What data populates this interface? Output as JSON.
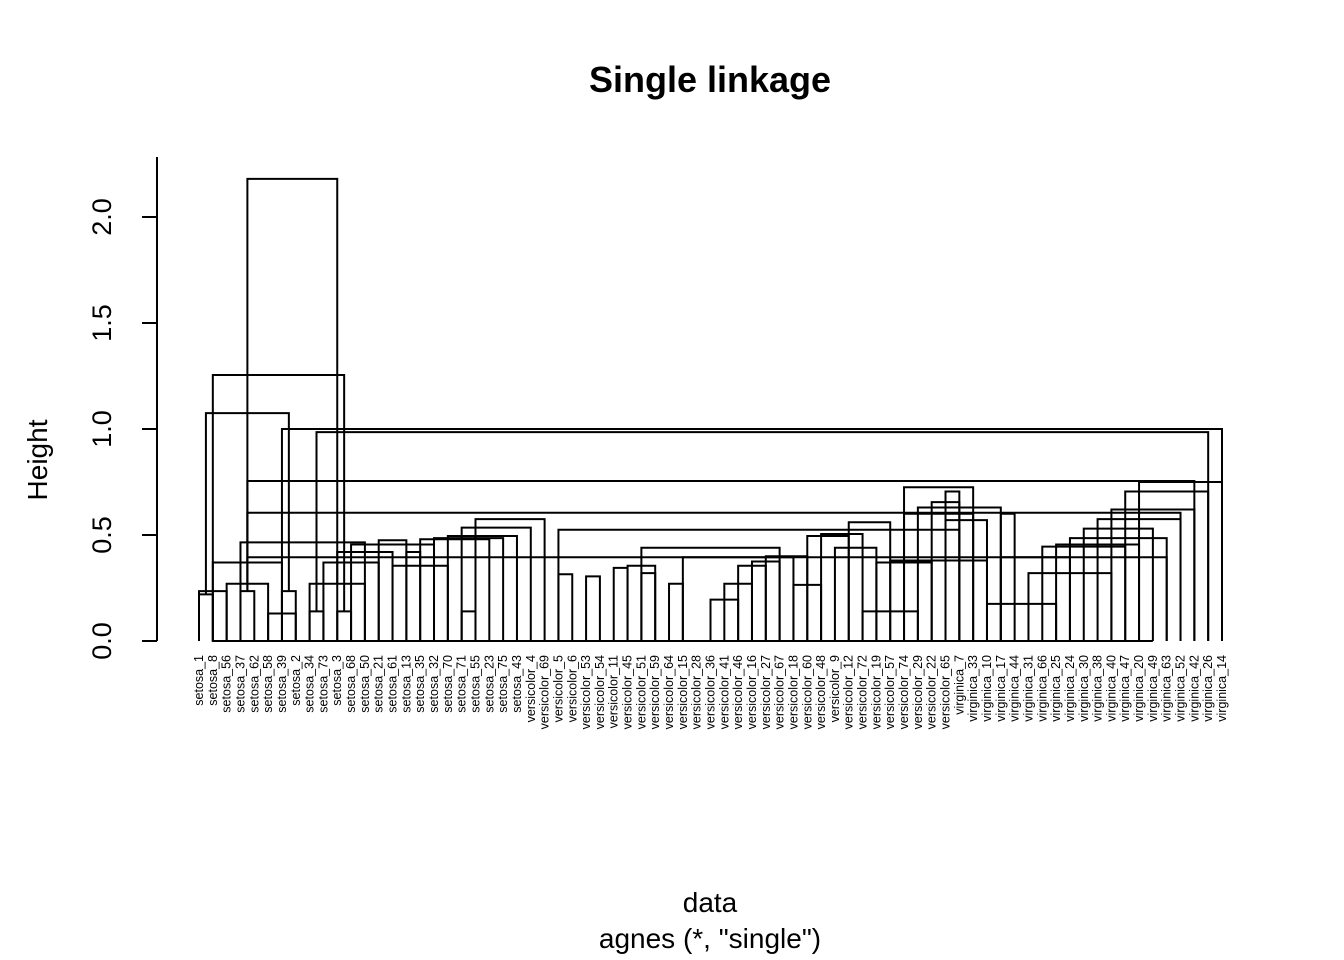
{
  "chart_data": {
    "type": "dendrogram",
    "title": "Single linkage",
    "xlabel": "data",
    "sublabel": "agnes (*, \"single\")",
    "ylabel": "Height",
    "ylim": [
      0,
      2.2
    ],
    "yticks": [
      0.0,
      0.5,
      1.0,
      1.5,
      2.0
    ],
    "ytick_labels": [
      "0.0",
      "0.5",
      "1.0",
      "1.5",
      "2.0"
    ],
    "leaves": [
      "setosa_1",
      "setosa_8",
      "setosa_56",
      "setosa_37",
      "setosa_62",
      "setosa_58",
      "setosa_39",
      "setosa_2",
      "setosa_34",
      "setosa_73",
      "setosa_3",
      "setosa_68",
      "setosa_50",
      "setosa_21",
      "setosa_61",
      "setosa_13",
      "setosa_35",
      "setosa_32",
      "setosa_70",
      "setosa_71",
      "setosa_55",
      "setosa_23",
      "setosa_75",
      "setosa_43",
      "versicolor_4",
      "versicolor_69",
      "versicolor_5",
      "versicolor_6",
      "versicolor_53",
      "versicolor_54",
      "versicolor_11",
      "versicolor_45",
      "versicolor_51",
      "versicolor_59",
      "versicolor_64",
      "versicolor_15",
      "versicolor_28",
      "versicolor_36",
      "versicolor_41",
      "versicolor_46",
      "versicolor_16",
      "versicolor_27",
      "versicolor_67",
      "versicolor_18",
      "versicolor_60",
      "versicolor_48",
      "versicolor_9",
      "versicolor_12",
      "versicolor_72",
      "versicolor_19",
      "versicolor_57",
      "versicolor_74",
      "versicolor_29",
      "versicolor_22",
      "versicolor_65",
      "virginica_7",
      "virginica_33",
      "virginica_10",
      "virginica_17",
      "virginica_44",
      "virginica_31",
      "virginica_66",
      "virginica_25",
      "virginica_24",
      "virginica_30",
      "virginica_38",
      "virginica_40",
      "virginica_47",
      "virginica_20",
      "virginica_49",
      "virginica_63",
      "virginica_52",
      "virginica_42",
      "virginica_26",
      "virginica_14"
    ],
    "merges": [
      [
        0,
        1,
        0.22
      ],
      [
        2,
        0,
        0.235
      ],
      [
        3,
        4,
        0.235
      ],
      [
        5,
        2,
        0.27
      ],
      [
        6,
        1,
        0.37
      ],
      [
        8,
        9,
        0.14
      ],
      [
        7,
        5,
        0.13
      ],
      [
        6,
        7,
        0.235
      ],
      [
        10,
        11,
        0.14
      ],
      [
        12,
        8,
        0.27
      ],
      [
        9,
        13,
        0.37
      ],
      [
        14,
        10,
        0.42
      ],
      [
        15,
        16,
        0.42
      ],
      [
        17,
        11,
        0.455
      ],
      [
        19,
        20,
        0.14
      ],
      [
        18,
        14,
        0.355
      ],
      [
        3,
        12,
        0.465
      ],
      [
        13,
        15,
        0.475
      ],
      [
        16,
        21,
        0.48
      ],
      [
        17,
        22,
        0.485
      ],
      [
        18,
        23,
        0.495
      ],
      [
        19,
        24,
        0.535
      ],
      [
        20,
        25,
        0.575
      ],
      [
        28,
        29,
        0.305
      ],
      [
        27,
        26,
        0.315
      ],
      [
        30,
        31,
        0.345
      ],
      [
        34,
        35,
        0.27
      ],
      [
        33,
        32,
        0.32
      ],
      [
        31,
        33,
        0.355
      ],
      [
        37,
        39,
        0.195
      ],
      [
        38,
        40,
        0.27
      ],
      [
        39,
        41,
        0.355
      ],
      [
        40,
        42,
        0.375
      ],
      [
        35,
        43,
        0.395
      ],
      [
        41,
        44,
        0.4
      ],
      [
        32,
        42,
        0.44
      ],
      [
        43,
        45,
        0.265
      ],
      [
        44,
        47,
        0.495
      ],
      [
        45,
        48,
        0.505
      ],
      [
        46,
        49,
        0.44
      ],
      [
        47,
        50,
        0.56
      ],
      [
        48,
        52,
        0.14
      ],
      [
        49,
        53,
        0.37
      ],
      [
        50,
        57,
        0.38
      ],
      [
        51,
        56,
        0.6
      ],
      [
        58,
        59,
        0.6
      ],
      [
        52,
        58,
        0.63
      ],
      [
        53,
        55,
        0.655
      ],
      [
        54,
        57,
        0.57
      ],
      [
        55,
        54,
        0.705
      ],
      [
        56,
        51,
        0.725
      ],
      [
        26,
        55,
        0.525
      ],
      [
        57,
        62,
        0.175
      ],
      [
        58,
        63,
        0.395
      ],
      [
        60,
        66,
        0.32
      ],
      [
        61,
        67,
        0.445
      ],
      [
        62,
        68,
        0.455
      ],
      [
        63,
        70,
        0.485
      ],
      [
        64,
        69,
        0.53
      ],
      [
        65,
        71,
        0.575
      ],
      [
        66,
        72,
        0.62
      ],
      [
        67,
        73,
        0.705
      ],
      [
        68,
        74,
        0.75
      ],
      [
        69,
        76,
        0.0
      ],
      [
        70,
        77,
        0.395
      ],
      [
        71,
        78,
        0.605
      ],
      [
        72,
        79,
        0.755
      ],
      [
        73,
        80,
        0.985
      ],
      [
        74,
        81,
        1.0
      ],
      [
        75,
        82,
        1.075
      ],
      [
        76,
        83,
        1.255
      ],
      [
        77,
        84,
        2.18
      ]
    ]
  }
}
